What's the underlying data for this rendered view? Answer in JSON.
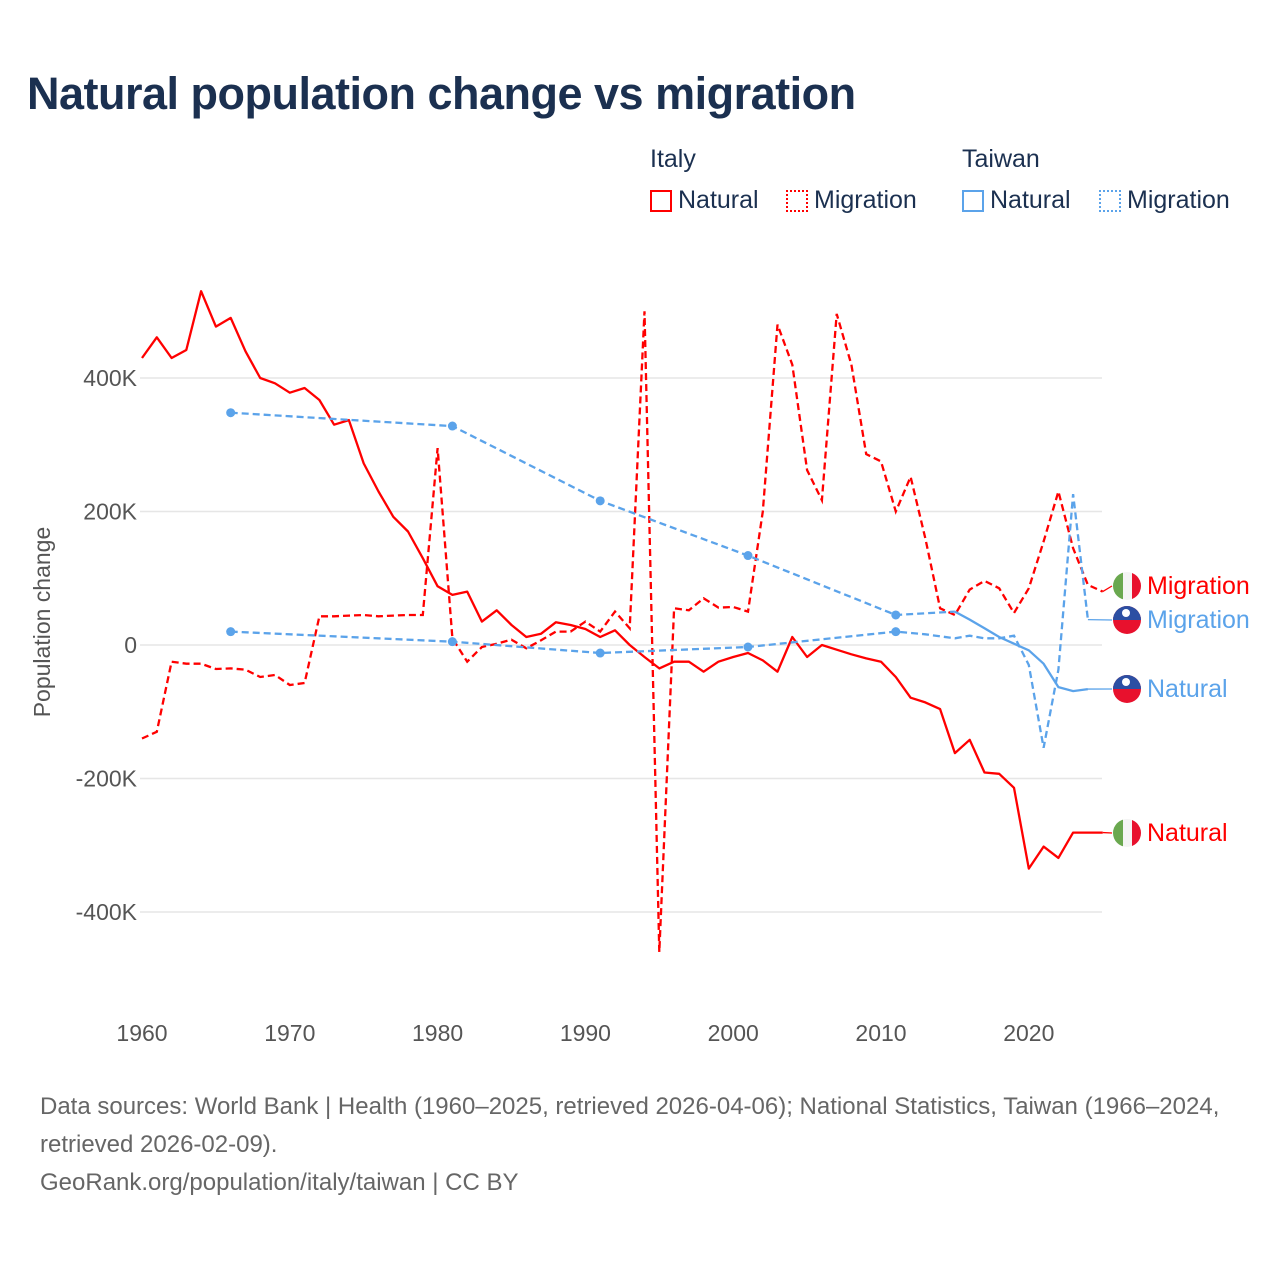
{
  "title": "Natural population change vs migration",
  "legend": {
    "groups": [
      {
        "name": "Italy",
        "items": [
          "Natural",
          "Migration"
        ]
      },
      {
        "name": "Taiwan",
        "items": [
          "Natural",
          "Migration"
        ]
      }
    ]
  },
  "colors": {
    "italy": "#ff0000",
    "taiwan": "#5ba3ea",
    "title": "#1b3050"
  },
  "footer": {
    "sources": "Data sources: World Bank | Health (1960–2025, retrieved 2026-04-06); National Statistics, Taiwan (1966–2024, retrieved 2026-02-09).",
    "credit": "GeoRank.org/population/italy/taiwan | CC BY"
  },
  "chart_data": {
    "type": "line",
    "title": "Natural population change vs migration",
    "xlabel": "",
    "ylabel": "Population change",
    "xlim": [
      1960,
      2025
    ],
    "ylim": [
      -500000,
      520000
    ],
    "x_ticks": [
      "1960",
      "1970",
      "1980",
      "1990",
      "2000",
      "2010",
      "2020"
    ],
    "y_ticks": [
      "400K",
      "200K",
      "0",
      "-200K",
      "-400K"
    ],
    "y_tick_values": [
      400000,
      200000,
      0,
      -200000,
      -400000
    ],
    "grid": true,
    "legend_position": "top-right",
    "series": [
      {
        "name": "Natural",
        "country": "Italy",
        "style": "solid",
        "end_label": "Natural",
        "x": [
          1960,
          1961,
          1962,
          1963,
          1964,
          1965,
          1966,
          1967,
          1968,
          1969,
          1970,
          1971,
          1972,
          1973,
          1974,
          1975,
          1976,
          1977,
          1978,
          1979,
          1980,
          1981,
          1982,
          1983,
          1984,
          1985,
          1986,
          1987,
          1988,
          1989,
          1990,
          1991,
          1992,
          1993,
          1994,
          1995,
          1996,
          1997,
          1998,
          1999,
          2000,
          2001,
          2002,
          2003,
          2004,
          2005,
          2006,
          2007,
          2008,
          2009,
          2010,
          2011,
          2012,
          2013,
          2014,
          2015,
          2016,
          2017,
          2018,
          2019,
          2020,
          2021,
          2022,
          2023,
          2024,
          2025
        ],
        "y": [
          430000,
          461000,
          430000,
          442000,
          530000,
          477000,
          490000,
          440000,
          400000,
          392000,
          378000,
          385000,
          367000,
          330000,
          337000,
          272000,
          230000,
          192000,
          170000,
          130000,
          88000,
          75000,
          80000,
          35000,
          52000,
          30000,
          12000,
          17000,
          34000,
          30000,
          24000,
          12000,
          22000,
          0,
          -18000,
          -35000,
          -25000,
          -25000,
          -40000,
          -25000,
          -18000,
          -12000,
          -23000,
          -40000,
          12000,
          -18000,
          0,
          -7000,
          -14000,
          -20000,
          -25000,
          -48000,
          -79000,
          -86000,
          -96000,
          -162000,
          -142000,
          -191000,
          -193000,
          -214000,
          -335000,
          -302000,
          -319000,
          -281000,
          -281000,
          -281000
        ]
      },
      {
        "name": "Migration",
        "country": "Italy",
        "style": "dashed",
        "end_label": "Migration",
        "x": [
          1960,
          1961,
          1962,
          1963,
          1964,
          1965,
          1966,
          1967,
          1968,
          1969,
          1970,
          1971,
          1972,
          1973,
          1974,
          1975,
          1976,
          1977,
          1978,
          1979,
          1980,
          1981,
          1982,
          1983,
          1984,
          1985,
          1986,
          1987,
          1988,
          1989,
          1990,
          1991,
          1992,
          1993,
          1994,
          1995,
          1996,
          1997,
          1998,
          1999,
          2000,
          2001,
          2002,
          2003,
          2004,
          2005,
          2006,
          2007,
          2008,
          2009,
          2010,
          2011,
          2012,
          2013,
          2014,
          2015,
          2016,
          2017,
          2018,
          2019,
          2020,
          2021,
          2022,
          2023,
          2024,
          2025
        ],
        "y": [
          -140000,
          -130000,
          -25000,
          -28000,
          -28000,
          -36000,
          -35000,
          -37000,
          -48000,
          -45000,
          -60000,
          -57000,
          43000,
          43000,
          44000,
          45000,
          43000,
          44000,
          45000,
          45000,
          295000,
          10000,
          -25000,
          -3000,
          2000,
          8000,
          -5000,
          7000,
          20000,
          20000,
          35000,
          20000,
          50000,
          25000,
          500000,
          -460000,
          55000,
          52000,
          70000,
          56000,
          57000,
          50000,
          200000,
          480000,
          420000,
          262000,
          217000,
          496000,
          420000,
          286000,
          275000,
          200000,
          252000,
          160000,
          55000,
          45000,
          83000,
          96000,
          85000,
          48000,
          85000,
          155000,
          230000,
          145000,
          90000,
          80000
        ]
      },
      {
        "name": "Natural",
        "country": "Taiwan",
        "style": "dashed-then-solid",
        "end_label": "Natural",
        "x": [
          1966,
          1981,
          1991,
          2001,
          2011,
          2015,
          2016,
          2017,
          2018,
          2019,
          2020,
          2021,
          2022,
          2023,
          2024
        ],
        "y": [
          348000,
          328000,
          216000,
          134000,
          45000,
          50000,
          38000,
          25000,
          12000,
          2000,
          -8000,
          -28000,
          -63000,
          -69000,
          -66000
        ],
        "markers": [
          1966,
          1981,
          1991,
          2001,
          2011
        ]
      },
      {
        "name": "Migration",
        "country": "Taiwan",
        "style": "dashed",
        "end_label": "Migration",
        "x": [
          1966,
          1981,
          1991,
          2001,
          2011,
          2012,
          2013,
          2014,
          2015,
          2016,
          2017,
          2018,
          2019,
          2020,
          2021,
          2022,
          2023,
          2024
        ],
        "y": [
          20000,
          5000,
          -12000,
          -3000,
          20000,
          18000,
          16000,
          13000,
          10000,
          14000,
          10000,
          10000,
          14000,
          -30000,
          -154000,
          -37000,
          226000,
          38000
        ],
        "markers": [
          1966,
          1981,
          1991,
          2001,
          2011
        ]
      }
    ]
  }
}
